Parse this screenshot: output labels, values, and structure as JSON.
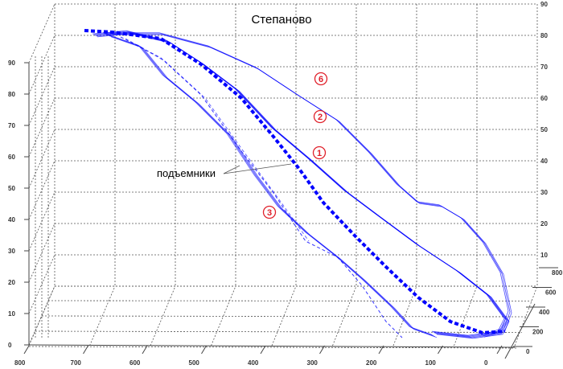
{
  "chart_data": {
    "type": "line",
    "projection": "3d",
    "title": "Степаново",
    "z_ticks_left": [
      "0",
      "10",
      "20",
      "30",
      "40",
      "50",
      "60",
      "70",
      "80",
      "90"
    ],
    "z_ticks_right": [
      "10",
      "20",
      "30",
      "40",
      "50",
      "60",
      "70",
      "80",
      "90"
    ],
    "x_ticks": [
      "800",
      "700",
      "600",
      "500",
      "400",
      "300",
      "200",
      "100",
      "0"
    ],
    "y_ticks": [
      "0",
      "200",
      "400",
      "600",
      "800"
    ],
    "grid": true,
    "series_color": "#0000ff",
    "annotations": {
      "lifts_label": "подъемники",
      "track_labels": [
        "6",
        "2",
        "1",
        "3"
      ],
      "label_color": "#e0202a"
    }
  }
}
